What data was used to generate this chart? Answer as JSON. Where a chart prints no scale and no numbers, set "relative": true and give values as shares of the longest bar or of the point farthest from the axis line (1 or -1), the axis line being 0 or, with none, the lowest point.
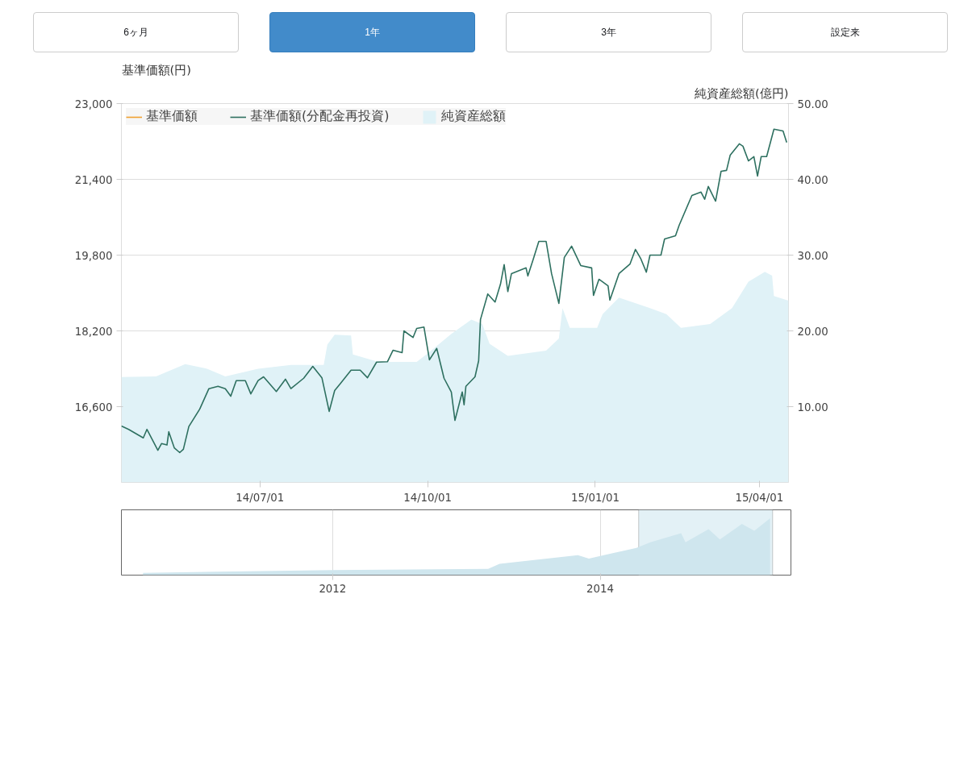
{
  "chart_data": [
    {
      "type": "line",
      "annotations": [
        "6ヶ月",
        "1年",
        "3年",
        "設定来"
      ],
      "ylabel": "基準価額(円)",
      "y2label": "純資産総額(億円)",
      "ylim": [
        15000,
        23000
      ],
      "yticks": [
        {
          "value": 16600,
          "label": "16,600"
        },
        {
          "value": 18200,
          "label": "18,200"
        },
        {
          "value": 19800,
          "label": "19,800"
        },
        {
          "value": 21400,
          "label": "21,400"
        },
        {
          "value": 23000,
          "label": "23,000"
        }
      ],
      "y2lim": [
        0,
        50
      ],
      "y2ticks": [
        {
          "value": 10,
          "label": "10.00"
        },
        {
          "value": 20,
          "label": "20.00"
        },
        {
          "value": 30,
          "label": "30.00"
        },
        {
          "value": 40,
          "label": "40.00"
        },
        {
          "value": 50,
          "label": "50.00"
        }
      ],
      "xlim": [
        "2014-04-16",
        "2015-04-17"
      ],
      "xticks": [
        {
          "value": "2014-07-01",
          "label": "14/07/01"
        },
        {
          "value": "2014-10-01",
          "label": "14/10/01"
        },
        {
          "value": "2015-01-01",
          "label": "15/01/01"
        },
        {
          "value": "2015-04-01",
          "label": "15/04/01"
        }
      ],
      "grid": "y",
      "legend": "top left",
      "series": [
        {
          "name": "基準価額",
          "color": "#f0a030"
        },
        {
          "name": "基準価額(分配金再投資)",
          "color": "#2e7060",
          "x": [
            "2014-04-16",
            "2014-04-20",
            "2014-04-28",
            "2014-04-30",
            "2014-05-06",
            "2014-05-08",
            "2014-05-11",
            "2014-05-12",
            "2014-05-15",
            "2014-05-18",
            "2014-05-20",
            "2014-05-23",
            "2014-05-29",
            "2014-06-03",
            "2014-06-08",
            "2014-06-12",
            "2014-06-15",
            "2014-06-18",
            "2014-06-23",
            "2014-06-26",
            "2014-06-30",
            "2014-07-03",
            "2014-07-10",
            "2014-07-15",
            "2014-07-18",
            "2014-07-25",
            "2014-07-30",
            "2014-08-04",
            "2014-08-08",
            "2014-08-11",
            "2014-08-14",
            "2014-08-20",
            "2014-08-25",
            "2014-08-29",
            "2014-09-03",
            "2014-09-09",
            "2014-09-12",
            "2014-09-17",
            "2014-09-18",
            "2014-09-23",
            "2014-09-25",
            "2014-09-29",
            "2014-10-02",
            "2014-10-06",
            "2014-10-10",
            "2014-10-14",
            "2014-10-16",
            "2014-10-20",
            "2014-10-21",
            "2014-10-22",
            "2014-10-27",
            "2014-10-29",
            "2014-10-30",
            "2014-11-03",
            "2014-11-07",
            "2014-11-10",
            "2014-11-12",
            "2014-11-14",
            "2014-11-16",
            "2014-11-24",
            "2014-11-25",
            "2014-11-28",
            "2014-12-01",
            "2014-12-05",
            "2014-12-08",
            "2014-12-12",
            "2014-12-15",
            "2014-12-19",
            "2014-12-24",
            "2014-12-30",
            "2014-12-31",
            "2015-01-03",
            "2015-01-08",
            "2015-01-09",
            "2015-01-14",
            "2015-01-20",
            "2015-01-23",
            "2015-01-26",
            "2015-01-29",
            "2015-01-31",
            "2015-02-06",
            "2015-02-08",
            "2015-02-14",
            "2015-02-16",
            "2015-02-23",
            "2015-02-28",
            "2015-03-02",
            "2015-03-04",
            "2015-03-08",
            "2015-03-11",
            "2015-03-14",
            "2015-03-16",
            "2015-03-21",
            "2015-03-23",
            "2015-03-26",
            "2015-03-29",
            "2015-03-31",
            "2015-04-02",
            "2015-04-05",
            "2015-04-09",
            "2015-04-14",
            "2015-04-16"
          ],
          "values": [
            16190,
            16120,
            15940,
            16120,
            15680,
            15820,
            15790,
            16070,
            15730,
            15630,
            15700,
            16180,
            16550,
            16980,
            17030,
            16980,
            16820,
            17150,
            17150,
            16870,
            17150,
            17230,
            16920,
            17180,
            16980,
            17200,
            17450,
            17210,
            16500,
            16940,
            17080,
            17370,
            17370,
            17210,
            17540,
            17550,
            17790,
            17740,
            18200,
            18060,
            18250,
            18280,
            17590,
            17830,
            17200,
            16910,
            16310,
            16910,
            16640,
            17030,
            17230,
            17570,
            18440,
            18980,
            18810,
            19190,
            19600,
            19030,
            19410,
            19530,
            19360,
            19720,
            20090,
            20090,
            19410,
            18780,
            19750,
            19990,
            19580,
            19530,
            18950,
            19290,
            19150,
            18850,
            19410,
            19610,
            19920,
            19720,
            19440,
            19800,
            19800,
            20140,
            20210,
            20430,
            21060,
            21130,
            20980,
            21250,
            20940,
            21570,
            21590,
            21910,
            22150,
            22100,
            21790,
            21880,
            21470,
            21880,
            21880,
            22460,
            22420,
            22180
          ]
        },
        {
          "name": "純資産総額",
          "type": "area",
          "axis": "y2",
          "color": "#e0f2f7",
          "x": [
            "2014-04-16",
            "2014-05-05",
            "2014-05-21",
            "2014-06-02",
            "2014-06-12",
            "2014-06-30",
            "2014-07-18",
            "2014-08-05",
            "2014-08-07",
            "2014-08-11",
            "2014-08-20",
            "2014-08-21",
            "2014-09-04",
            "2014-09-25",
            "2014-10-02",
            "2014-10-14",
            "2014-10-25",
            "2014-10-31",
            "2014-11-04",
            "2014-11-14",
            "2014-12-05",
            "2014-12-12",
            "2014-12-14",
            "2014-12-18",
            "2015-01-02",
            "2015-01-05",
            "2015-01-14",
            "2015-01-31",
            "2015-02-09",
            "2015-02-17",
            "2015-03-05",
            "2015-03-17",
            "2015-03-26",
            "2015-04-04",
            "2015-04-08",
            "2015-04-09",
            "2015-04-17"
          ],
          "values": [
            13.9,
            14.0,
            15.6,
            15.0,
            14.0,
            15.0,
            15.5,
            15.5,
            18.2,
            19.5,
            19.4,
            16.9,
            15.9,
            15.9,
            17.2,
            19.6,
            21.5,
            20.9,
            18.3,
            16.7,
            17.4,
            19.0,
            23.0,
            20.4,
            20.4,
            22.2,
            24.4,
            23.0,
            22.2,
            20.4,
            20.9,
            23.0,
            26.5,
            27.8,
            27.3,
            24.6,
            24.0
          ]
        }
      ]
    },
    {
      "type": "area",
      "relative": true,
      "color": "#cfe6ee",
      "x": [
        "2010-08",
        "2012-01",
        "2013-03",
        "2013-04",
        "2013-11",
        "2013-12",
        "2014-04-10",
        "2014-05-18",
        "2014-08-10",
        "2014-08-22",
        "2014-10-24",
        "2014-11-24",
        "2015-01-23",
        "2015-02-26",
        "2015-04-10"
      ],
      "values": [
        0.04,
        0.09,
        0.11,
        0.2,
        0.35,
        0.29,
        0.48,
        0.58,
        0.74,
        0.58,
        0.81,
        0.63,
        0.9,
        0.78,
        1.0
      ],
      "xlim": [
        "2010-06-03",
        "2015-06-06"
      ],
      "xticks": [
        "2012",
        "2014"
      ],
      "grid": "x",
      "bands": [
        {
          "axis": "x",
          "from": "2014-04-16",
          "to": "2015-04-17",
          "color": "#e3f1f6"
        }
      ]
    }
  ]
}
